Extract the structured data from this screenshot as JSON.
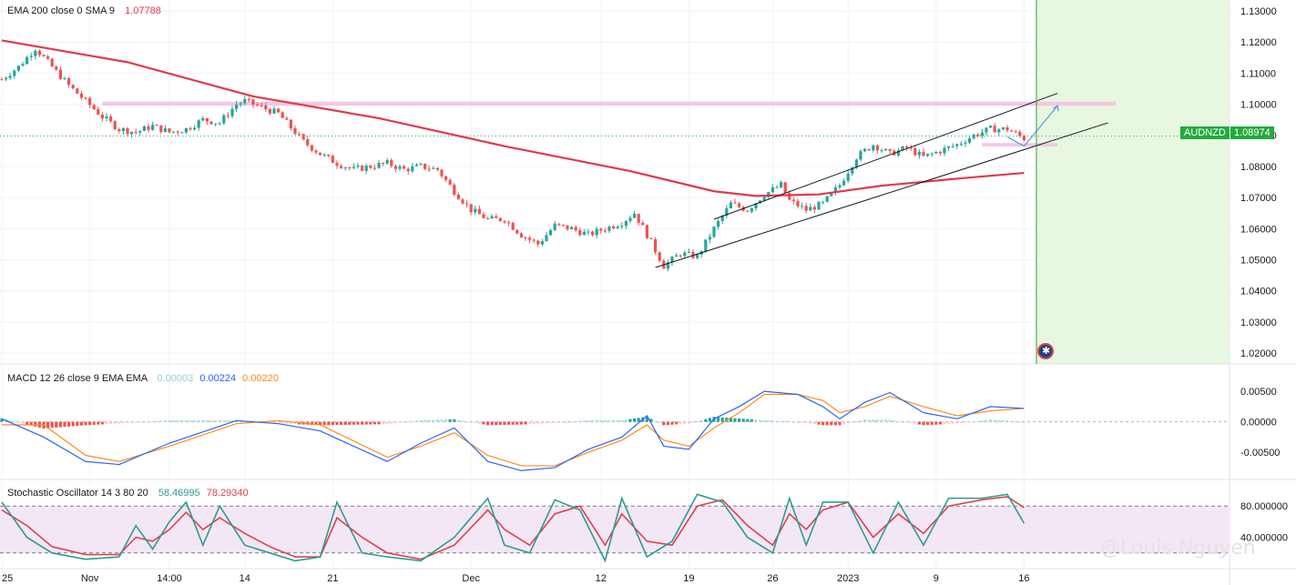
{
  "symbol": "AUDNZD",
  "last_price": "1.08974",
  "watermark": "@Louis Nguyen",
  "indicators": {
    "ema_title": "EMA 200 close 0 SMA 9",
    "ema_value": "1.07788",
    "macd_title": "MACD 12 26 close 9 EMA EMA",
    "macd_hist": "0.00003",
    "macd_line": "0.00224",
    "macd_signal": "0.00220",
    "stoch_title": "Stochastic Oscillator 14 3 80 20",
    "stoch_k": "58.46995",
    "stoch_d": "78.29340"
  },
  "colors": {
    "up": "#26a69a",
    "down": "#ef5350",
    "ema": "#e03a4a",
    "macd": "#2962ff",
    "signal": "#ff8c1a",
    "stoch_k": "#2a9d8f",
    "stoch_d": "#e0404a",
    "resistance_zone": "#f4c6e6",
    "future_zone": "#e8f8e0",
    "tag_bg": "#22ab3c"
  },
  "chart_data": [
    {
      "type": "candlestick",
      "symbol": "AUDNZD",
      "y_ticks": [
        "1.13000",
        "1.12000",
        "1.11000",
        "1.10000",
        "1.09000",
        "1.08000",
        "1.07000",
        "1.06000",
        "1.05000",
        "1.04000",
        "1.03000",
        "1.02000"
      ],
      "ylim": [
        1.0165,
        1.1335
      ],
      "x_ticks": [
        "25",
        "Nov",
        "14:00",
        "14",
        "21",
        "Dec",
        "12",
        "19",
        "26",
        "2023",
        "9",
        "16"
      ],
      "close_path": [
        [
          0,
          1.108
        ],
        [
          4,
          1.112
        ],
        [
          8,
          1.118
        ],
        [
          12,
          1.112
        ],
        [
          16,
          1.106
        ],
        [
          20,
          1.101
        ],
        [
          24,
          1.096
        ],
        [
          28,
          1.092
        ],
        [
          32,
          1.091
        ],
        [
          36,
          1.093
        ],
        [
          40,
          1.091
        ],
        [
          44,
          1.092
        ],
        [
          48,
          1.095
        ],
        [
          52,
          1.094
        ],
        [
          56,
          1.1
        ],
        [
          58,
          1.101
        ],
        [
          62,
          1.099
        ],
        [
          66,
          1.097
        ],
        [
          68,
          1.094
        ],
        [
          72,
          1.088
        ],
        [
          76,
          1.084
        ],
        [
          80,
          1.081
        ],
        [
          84,
          1.079
        ],
        [
          88,
          1.08
        ],
        [
          92,
          1.081
        ],
        [
          96,
          1.079
        ],
        [
          100,
          1.08
        ],
        [
          104,
          1.079
        ],
        [
          108,
          1.072
        ],
        [
          112,
          1.066
        ],
        [
          116,
          1.063
        ],
        [
          120,
          1.063
        ],
        [
          124,
          1.058
        ],
        [
          128,
          1.055
        ],
        [
          132,
          1.061
        ],
        [
          136,
          1.06
        ],
        [
          140,
          1.058
        ],
        [
          144,
          1.06
        ],
        [
          148,
          1.062
        ],
        [
          151,
          1.065
        ],
        [
          154,
          1.058
        ],
        [
          158,
          1.048
        ],
        [
          162,
          1.052
        ],
        [
          166,
          1.051
        ],
        [
          170,
          1.06
        ],
        [
          174,
          1.068
        ],
        [
          178,
          1.066
        ],
        [
          182,
          1.071
        ],
        [
          186,
          1.074
        ],
        [
          188,
          1.069
        ],
        [
          192,
          1.066
        ],
        [
          196,
          1.068
        ],
        [
          200,
          1.074
        ],
        [
          204,
          1.083
        ],
        [
          208,
          1.087
        ],
        [
          212,
          1.084
        ],
        [
          216,
          1.086
        ],
        [
          220,
          1.083
        ],
        [
          224,
          1.085
        ],
        [
          228,
          1.087
        ],
        [
          232,
          1.09
        ],
        [
          236,
          1.092
        ],
        [
          240,
          1.092
        ],
        [
          244,
          1.089
        ]
      ],
      "ema200": [
        [
          0,
          1.1205
        ],
        [
          30,
          1.1135
        ],
        [
          60,
          1.1025
        ],
        [
          90,
          1.0955
        ],
        [
          120,
          1.0865
        ],
        [
          150,
          1.0785
        ],
        [
          170,
          1.072
        ],
        [
          180,
          1.0705
        ],
        [
          195,
          1.071
        ],
        [
          210,
          1.0738
        ],
        [
          230,
          1.0763
        ],
        [
          244,
          1.0779
        ]
      ],
      "resistance_zone": [
        1.0995,
        1.1008
      ],
      "support_zone": [
        1.0864,
        1.0875
      ],
      "channel_upper": [
        [
          170,
          1.063
        ],
        [
          252,
          1.1035
        ]
      ],
      "channel_lower": [
        [
          156,
          1.0475
        ],
        [
          264,
          1.094
        ]
      ],
      "projection_arrow": [
        [
          244,
          1.0865
        ],
        [
          252,
          1.0995
        ]
      ]
    },
    {
      "type": "macd",
      "y_ticks": [
        "0.00500",
        "0.00000",
        "-0.00500"
      ],
      "ylim": [
        -0.00945,
        0.0095
      ],
      "macd_path": [
        [
          0,
          0.0005
        ],
        [
          10,
          -0.0025
        ],
        [
          20,
          -0.0065
        ],
        [
          28,
          -0.007
        ],
        [
          40,
          -0.0035
        ],
        [
          56,
          0.0002
        ],
        [
          66,
          -0.0003
        ],
        [
          76,
          -0.0015
        ],
        [
          92,
          -0.0065
        ],
        [
          100,
          -0.0035
        ],
        [
          108,
          -0.001
        ],
        [
          116,
          -0.0065
        ],
        [
          124,
          -0.008
        ],
        [
          132,
          -0.0075
        ],
        [
          140,
          -0.0045
        ],
        [
          148,
          -0.0025
        ],
        [
          154,
          0.001
        ],
        [
          158,
          -0.004
        ],
        [
          164,
          -0.0045
        ],
        [
          170,
          0.0005
        ],
        [
          176,
          0.0025
        ],
        [
          182,
          0.005
        ],
        [
          190,
          0.0045
        ],
        [
          196,
          0.0025
        ],
        [
          200,
          0.0005
        ],
        [
          206,
          0.0032
        ],
        [
          212,
          0.0048
        ],
        [
          220,
          0.0015
        ],
        [
          228,
          0.0005
        ],
        [
          236,
          0.0025
        ],
        [
          244,
          0.0022
        ]
      ],
      "signal_path": [
        [
          0,
          -0.0005
        ],
        [
          10,
          -0.0005
        ],
        [
          20,
          -0.0055
        ],
        [
          28,
          -0.0065
        ],
        [
          40,
          -0.004
        ],
        [
          56,
          -0.0003
        ],
        [
          66,
          0.0002
        ],
        [
          76,
          -0.0005
        ],
        [
          92,
          -0.0058
        ],
        [
          100,
          -0.004
        ],
        [
          108,
          -0.0018
        ],
        [
          116,
          -0.0055
        ],
        [
          124,
          -0.0072
        ],
        [
          132,
          -0.0072
        ],
        [
          140,
          -0.005
        ],
        [
          148,
          -0.003
        ],
        [
          154,
          -0.0005
        ],
        [
          158,
          -0.003
        ],
        [
          164,
          -0.004
        ],
        [
          170,
          -0.001
        ],
        [
          176,
          0.0015
        ],
        [
          182,
          0.0045
        ],
        [
          190,
          0.0045
        ],
        [
          196,
          0.0035
        ],
        [
          200,
          0.0015
        ],
        [
          206,
          0.0025
        ],
        [
          212,
          0.0042
        ],
        [
          220,
          0.0025
        ],
        [
          228,
          0.001
        ],
        [
          236,
          0.0018
        ],
        [
          244,
          0.0022
        ]
      ]
    },
    {
      "type": "stochastic",
      "y_ticks": [
        "80.000000",
        "40.000000"
      ],
      "ylim": [
        0,
        114
      ],
      "levels": [
        80,
        20
      ],
      "k_path": [
        [
          0,
          85
        ],
        [
          6,
          40
        ],
        [
          12,
          20
        ],
        [
          20,
          12
        ],
        [
          28,
          15
        ],
        [
          32,
          55
        ],
        [
          36,
          25
        ],
        [
          40,
          60
        ],
        [
          44,
          85
        ],
        [
          48,
          30
        ],
        [
          52,
          80
        ],
        [
          58,
          30
        ],
        [
          64,
          20
        ],
        [
          70,
          10
        ],
        [
          76,
          15
        ],
        [
          80,
          85
        ],
        [
          86,
          20
        ],
        [
          92,
          15
        ],
        [
          100,
          10
        ],
        [
          108,
          40
        ],
        [
          116,
          90
        ],
        [
          120,
          30
        ],
        [
          126,
          20
        ],
        [
          132,
          88
        ],
        [
          138,
          75
        ],
        [
          144,
          10
        ],
        [
          148,
          90
        ],
        [
          154,
          15
        ],
        [
          160,
          35
        ],
        [
          166,
          95
        ],
        [
          172,
          85
        ],
        [
          178,
          40
        ],
        [
          184,
          20
        ],
        [
          188,
          90
        ],
        [
          192,
          30
        ],
        [
          196,
          85
        ],
        [
          202,
          85
        ],
        [
          208,
          20
        ],
        [
          214,
          85
        ],
        [
          220,
          30
        ],
        [
          226,
          90
        ],
        [
          234,
          90
        ],
        [
          240,
          95
        ],
        [
          244,
          58
        ]
      ],
      "d_path": [
        [
          0,
          75
        ],
        [
          6,
          55
        ],
        [
          12,
          28
        ],
        [
          20,
          18
        ],
        [
          28,
          18
        ],
        [
          32,
          40
        ],
        [
          36,
          35
        ],
        [
          40,
          50
        ],
        [
          44,
          72
        ],
        [
          48,
          50
        ],
        [
          52,
          65
        ],
        [
          58,
          45
        ],
        [
          64,
          28
        ],
        [
          70,
          15
        ],
        [
          76,
          15
        ],
        [
          80,
          65
        ],
        [
          86,
          40
        ],
        [
          92,
          20
        ],
        [
          100,
          12
        ],
        [
          108,
          30
        ],
        [
          116,
          75
        ],
        [
          120,
          50
        ],
        [
          126,
          30
        ],
        [
          132,
          70
        ],
        [
          138,
          80
        ],
        [
          144,
          30
        ],
        [
          148,
          70
        ],
        [
          154,
          35
        ],
        [
          160,
          30
        ],
        [
          166,
          80
        ],
        [
          172,
          88
        ],
        [
          178,
          55
        ],
        [
          184,
          30
        ],
        [
          188,
          70
        ],
        [
          192,
          50
        ],
        [
          196,
          75
        ],
        [
          202,
          85
        ],
        [
          208,
          40
        ],
        [
          214,
          70
        ],
        [
          220,
          45
        ],
        [
          226,
          80
        ],
        [
          234,
          88
        ],
        [
          240,
          92
        ],
        [
          244,
          78
        ]
      ]
    }
  ]
}
